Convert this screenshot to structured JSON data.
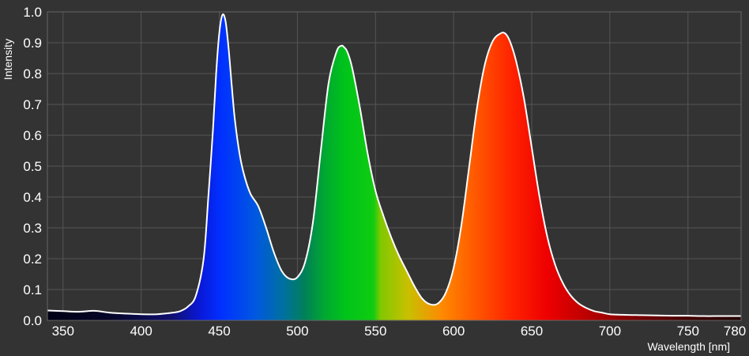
{
  "chart_data": {
    "type": "area",
    "title": "",
    "xlabel": "Wavelength [nm]",
    "ylabel": "Intensity",
    "xlim": [
      340,
      784
    ],
    "ylim": [
      0,
      1.0
    ],
    "grid": true,
    "legend": "none",
    "x_ticks": [
      350,
      400,
      450,
      500,
      550,
      600,
      650,
      700,
      750,
      780
    ],
    "x_tick_labels": [
      "350",
      "400",
      "450",
      "500",
      "550",
      "600",
      "650",
      "700",
      "750",
      "780"
    ],
    "y_ticks": [
      0.0,
      0.1,
      0.2,
      0.3,
      0.4,
      0.5,
      0.6,
      0.7,
      0.8,
      0.9,
      1.0
    ],
    "y_tick_labels": [
      "0.0",
      "0.1",
      "0.2",
      "0.3",
      "0.4",
      "0.5",
      "0.6",
      "0.7",
      "0.8",
      "0.9",
      "1.0"
    ],
    "series": [
      {
        "x": [
          340,
          350,
          360,
          370,
          380,
          390,
          400,
          410,
          420,
          425,
          430,
          435,
          440,
          443,
          446,
          448,
          450,
          452,
          454,
          456,
          458,
          460,
          463,
          466,
          470,
          475,
          480,
          485,
          490,
          495,
          500,
          505,
          510,
          515,
          520,
          525,
          528,
          530,
          532,
          535,
          540,
          545,
          550,
          555,
          560,
          565,
          570,
          575,
          580,
          585,
          590,
          595,
          600,
          605,
          610,
          615,
          620,
          625,
          630,
          633,
          636,
          640,
          645,
          650,
          655,
          660,
          665,
          670,
          675,
          680,
          685,
          690,
          695,
          700,
          710,
          720,
          730,
          740,
          750,
          760,
          770,
          780,
          784
        ],
        "values": [
          0.032,
          0.03,
          0.028,
          0.031,
          0.025,
          0.022,
          0.02,
          0.02,
          0.025,
          0.03,
          0.045,
          0.08,
          0.2,
          0.4,
          0.62,
          0.8,
          0.93,
          0.99,
          0.97,
          0.88,
          0.76,
          0.65,
          0.54,
          0.47,
          0.41,
          0.37,
          0.3,
          0.22,
          0.16,
          0.135,
          0.14,
          0.19,
          0.32,
          0.55,
          0.77,
          0.87,
          0.89,
          0.885,
          0.87,
          0.82,
          0.69,
          0.54,
          0.42,
          0.34,
          0.27,
          0.21,
          0.16,
          0.11,
          0.07,
          0.052,
          0.055,
          0.09,
          0.17,
          0.31,
          0.5,
          0.69,
          0.83,
          0.905,
          0.93,
          0.93,
          0.905,
          0.84,
          0.72,
          0.56,
          0.4,
          0.27,
          0.18,
          0.12,
          0.08,
          0.055,
          0.04,
          0.03,
          0.025,
          0.02,
          0.018,
          0.017,
          0.016,
          0.015,
          0.015,
          0.014,
          0.014,
          0.014,
          0.014
        ]
      }
    ]
  },
  "colors": {
    "background": "#333333",
    "grid": "#555555",
    "curve": "#ffffff",
    "text": "#ffffff"
  }
}
